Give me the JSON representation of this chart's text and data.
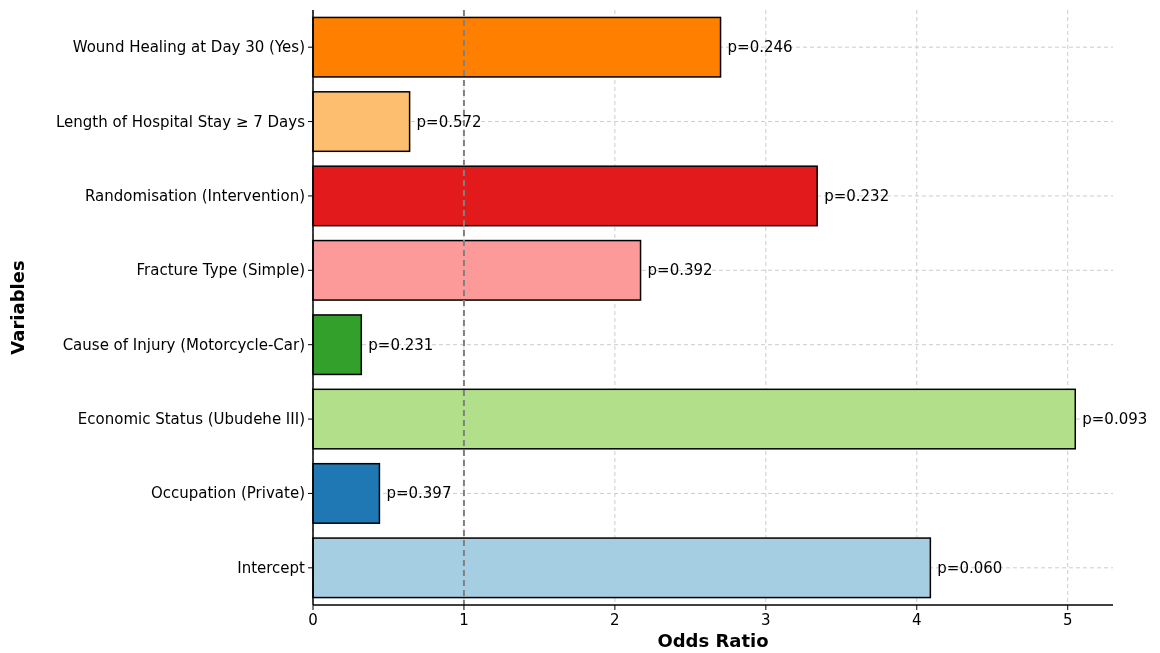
{
  "chart_data": {
    "type": "bar",
    "orientation": "horizontal",
    "xlabel": "Odds Ratio",
    "ylabel": "Variables",
    "categories": [
      "Wound Healing at Day 30 (Yes)",
      "Length of Hospital Stay ≥ 7 Days",
      "Randomisation (Intervention)",
      "Fracture Type (Simple)",
      "Cause of Injury (Motorcycle-Car)",
      "Economic Status (Ubudehe III)",
      "Occupation (Private)",
      "Intercept"
    ],
    "values": [
      2.7,
      0.64,
      3.34,
      2.17,
      0.32,
      5.05,
      0.44,
      4.09
    ],
    "colors": [
      "#ff7f00",
      "#fdbf6f",
      "#e31a1c",
      "#fb9a99",
      "#33a02c",
      "#b2df8a",
      "#1f78b4",
      "#a6cee3"
    ],
    "annotations": [
      {
        "text": "p=0.246",
        "x": 2.7,
        "y": "Wound Healing at Day 30 (Yes)"
      },
      {
        "text": "p=0.572",
        "x": 0.64,
        "y": "Length of Hospital Stay ≥ 7 Days"
      },
      {
        "text": "p=0.232",
        "x": 3.34,
        "y": "Randomisation (Intervention)"
      },
      {
        "text": "p=0.392",
        "x": 2.17,
        "y": "Fracture Type (Simple)"
      },
      {
        "text": "p=0.231",
        "x": 0.32,
        "y": "Cause of Injury (Motorcycle-Car)"
      },
      {
        "text": "p=0.093",
        "x": 5.05,
        "y": "Economic Status (Ubudehe III)"
      },
      {
        "text": "p=0.397",
        "x": 0.44,
        "y": "Occupation (Private)"
      },
      {
        "text": "p=0.060",
        "x": 4.09,
        "y": "Intercept"
      }
    ],
    "xlim": [
      0,
      5.3
    ],
    "xticks": [
      0,
      1,
      2,
      3,
      4,
      5
    ],
    "grid": true,
    "ref_lines": [
      {
        "axis": "x",
        "value": 1,
        "color": "#808080",
        "line_style": "dashed"
      }
    ]
  }
}
